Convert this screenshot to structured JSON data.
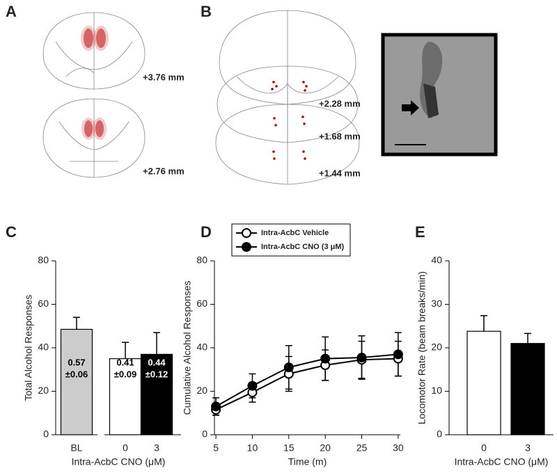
{
  "panels": {
    "a": {
      "label": "A",
      "sections": [
        "+3.76 mm",
        "+2.76 mm"
      ]
    },
    "b": {
      "label": "B",
      "sections": [
        "+2.28 mm",
        "+1.68 mm",
        "+1.44 mm"
      ]
    }
  },
  "chart_data": [
    {
      "panel": "C",
      "type": "bar",
      "ylabel": "Total Alcohol Responses",
      "xlabel": "Intra-AcbC CNO (μM)",
      "categories": [
        "BL",
        "0",
        "3"
      ],
      "values": [
        48.5,
        35,
        37
      ],
      "errors": [
        5.5,
        7.5,
        10
      ],
      "colors": [
        "#cccccc",
        "#ffffff",
        "#000000"
      ],
      "bar_notes": [
        [
          "0.57",
          "±0.06"
        ],
        [
          "0.41",
          "±0.09"
        ],
        [
          "0.44",
          "±0.12"
        ]
      ],
      "ylim": [
        0,
        80
      ],
      "yticks": [
        0,
        20,
        40,
        60,
        80
      ]
    },
    {
      "panel": "D",
      "type": "line",
      "ylabel": "Cumulative Alcohol Responses",
      "xlabel": "Time (m)",
      "x": [
        5,
        10,
        15,
        20,
        25,
        30
      ],
      "xlim": [
        4.8,
        30.3
      ],
      "xticks": [
        5,
        10,
        15,
        20,
        25,
        30
      ],
      "ylim": [
        0,
        80
      ],
      "yticks": [
        0,
        20,
        40,
        60,
        80
      ],
      "legend": "top-left",
      "series": [
        {
          "name": "Intra-AcbC Vehicle",
          "color": "#ffffff",
          "values": [
            11.5,
            19.5,
            28,
            32,
            34.5,
            35
          ],
          "errors": [
            2.5,
            4.5,
            8,
            7,
            8.5,
            8
          ]
        },
        {
          "name": "Intra-AcbC CNO (3 μM)",
          "color": "#000000",
          "values": [
            13,
            22.5,
            31,
            35,
            35.5,
            37
          ],
          "errors": [
            4,
            5.5,
            10,
            10,
            10,
            10
          ]
        }
      ]
    },
    {
      "panel": "E",
      "type": "bar",
      "ylabel": "Locomotor Rate (beam breaks/min)",
      "xlabel": "Intra-AcbC CNO (μM)",
      "categories": [
        "0",
        "3"
      ],
      "values": [
        23.8,
        21
      ],
      "errors": [
        3.6,
        2.3
      ],
      "colors": [
        "#ffffff",
        "#000000"
      ],
      "ylim": [
        0,
        40
      ],
      "yticks": [
        0,
        10,
        20,
        30,
        40
      ]
    }
  ]
}
